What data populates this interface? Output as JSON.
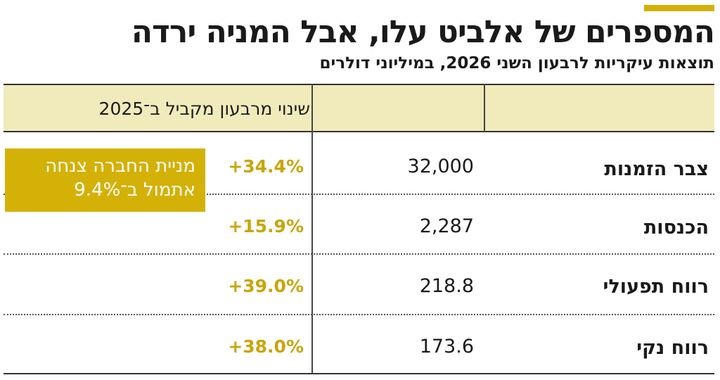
{
  "header": {
    "title": "המספרים של אלביט עלו, אבל המניה ירדה",
    "subtitle": "תוצאות עיקריות לרבעון השני 2026, במיליוני דולרים"
  },
  "table": {
    "columns": {
      "metric": "",
      "value": "",
      "change": "שינוי מרבעון מקביל ב־2025"
    },
    "rows": [
      {
        "label": "צבר הזמנות",
        "value": "32,000",
        "change": "+34.4%"
      },
      {
        "label": "הכנסות",
        "value": "2,287",
        "change": "+15.9%"
      },
      {
        "label": "רווח תפעולי",
        "value": "218.8",
        "change": "+39.0%"
      },
      {
        "label": "רווח נקי",
        "value": "173.6",
        "change": "+38.0%"
      }
    ]
  },
  "callout": {
    "line1": "מניית החברה צנחה",
    "line2": "אתמול ב־9.4%"
  },
  "colors": {
    "accent": "#d4b107",
    "header_fill": "#f1ebbb",
    "change_text": "#c9a50a"
  }
}
